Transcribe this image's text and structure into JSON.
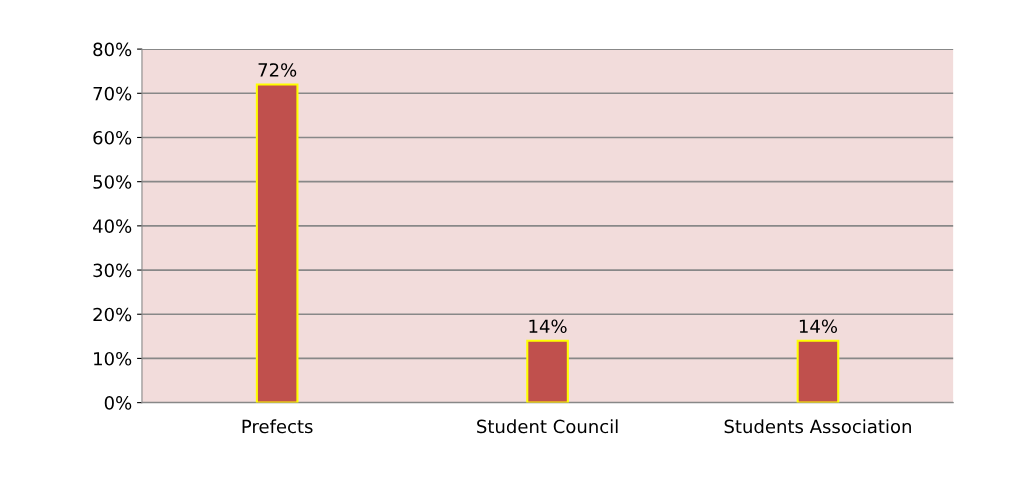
{
  "chart_data": {
    "type": "bar",
    "categories": [
      "Prefects",
      "Student Council",
      "Students Association"
    ],
    "values": [
      72,
      14,
      14
    ],
    "color": "#c0504d",
    "value_labels": [
      "72%",
      "14%",
      "14%"
    ],
    "ylim": [
      0,
      80
    ],
    "yticks": [
      {
        "value": 0,
        "label": "0%"
      },
      {
        "value": 10,
        "label": "10%"
      },
      {
        "value": 20,
        "label": "20%"
      },
      {
        "value": 30,
        "label": "30%"
      },
      {
        "value": 40,
        "label": "40%"
      },
      {
        "value": 50,
        "label": "50%"
      },
      {
        "value": 60,
        "label": "60%"
      },
      {
        "value": 70,
        "label": "70%"
      },
      {
        "value": 80,
        "label": "80%"
      }
    ],
    "grid": "y"
  }
}
